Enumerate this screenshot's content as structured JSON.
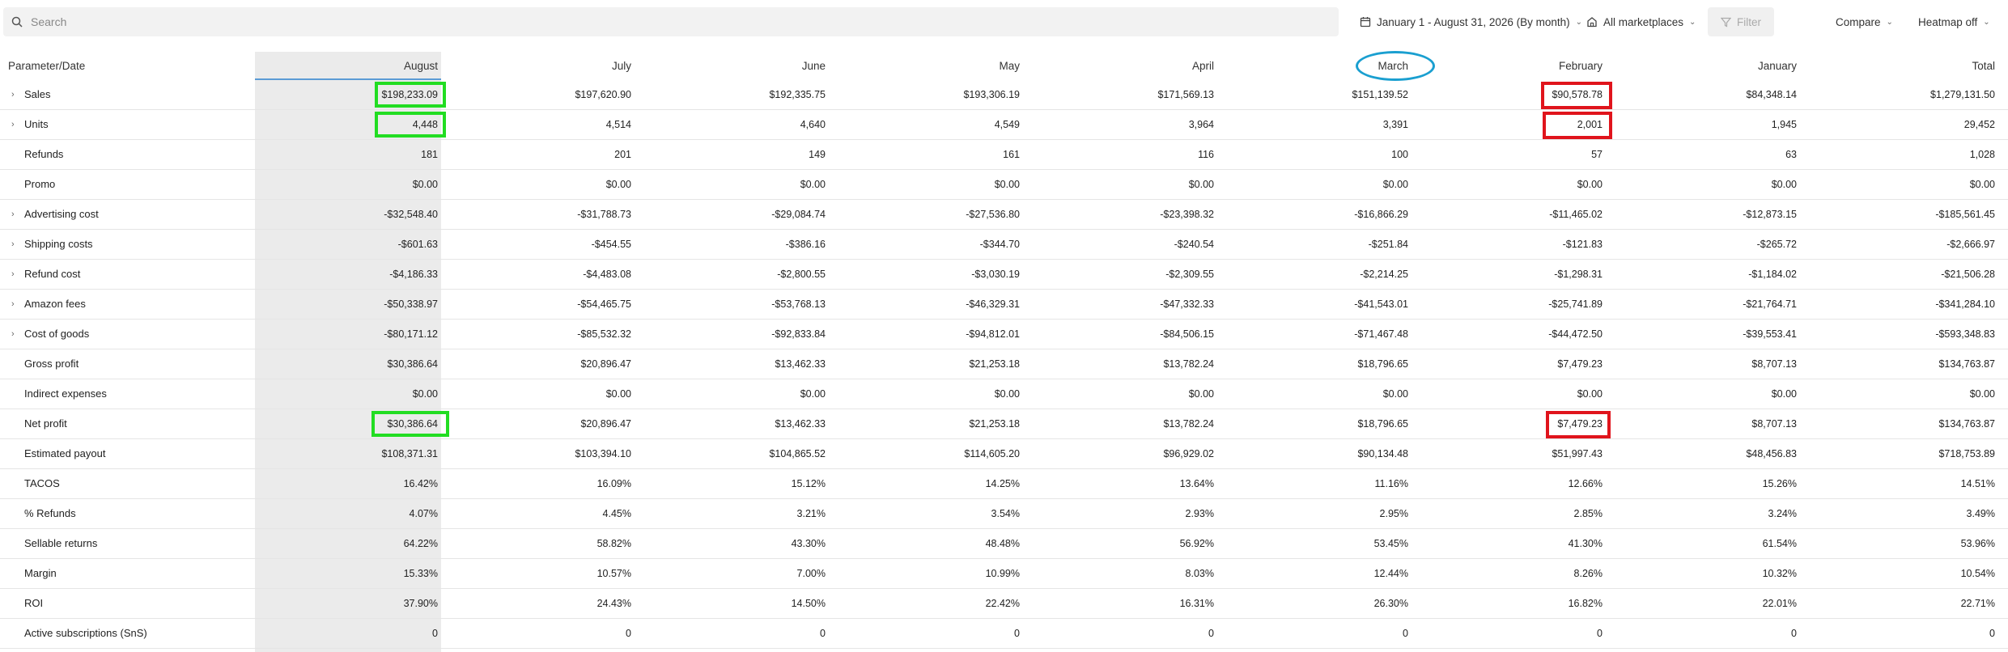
{
  "search": {
    "placeholder": "Search",
    "value": ""
  },
  "toolbar": {
    "date_range": "January 1 - August 31, 2026 (By month)",
    "marketplaces": "All marketplaces",
    "filter": "Filter",
    "compare": "Compare",
    "heatmap": "Heatmap off"
  },
  "table": {
    "param_header": "Parameter/Date",
    "columns": [
      "August",
      "July",
      "June",
      "May",
      "April",
      "March",
      "February",
      "January",
      "Total"
    ],
    "rows": [
      {
        "label": "Sales",
        "expandable": true,
        "values": [
          "$198,233.09",
          "$197,620.90",
          "$192,335.75",
          "$193,306.19",
          "$171,569.13",
          "$151,139.52",
          "$90,578.78",
          "$84,348.14",
          "$1,279,131.50"
        ]
      },
      {
        "label": "Units",
        "expandable": true,
        "values": [
          "4,448",
          "4,514",
          "4,640",
          "4,549",
          "3,964",
          "3,391",
          "2,001",
          "1,945",
          "29,452"
        ]
      },
      {
        "label": "Refunds",
        "expandable": false,
        "values": [
          "181",
          "201",
          "149",
          "161",
          "116",
          "100",
          "57",
          "63",
          "1,028"
        ]
      },
      {
        "label": "Promo",
        "expandable": false,
        "values": [
          "$0.00",
          "$0.00",
          "$0.00",
          "$0.00",
          "$0.00",
          "$0.00",
          "$0.00",
          "$0.00",
          "$0.00"
        ]
      },
      {
        "label": "Advertising cost",
        "expandable": true,
        "values": [
          "-$32,548.40",
          "-$31,788.73",
          "-$29,084.74",
          "-$27,536.80",
          "-$23,398.32",
          "-$16,866.29",
          "-$11,465.02",
          "-$12,873.15",
          "-$185,561.45"
        ]
      },
      {
        "label": "Shipping costs",
        "expandable": true,
        "values": [
          "-$601.63",
          "-$454.55",
          "-$386.16",
          "-$344.70",
          "-$240.54",
          "-$251.84",
          "-$121.83",
          "-$265.72",
          "-$2,666.97"
        ]
      },
      {
        "label": "Refund cost",
        "expandable": true,
        "values": [
          "-$4,186.33",
          "-$4,483.08",
          "-$2,800.55",
          "-$3,030.19",
          "-$2,309.55",
          "-$2,214.25",
          "-$1,298.31",
          "-$1,184.02",
          "-$21,506.28"
        ]
      },
      {
        "label": "Amazon fees",
        "expandable": true,
        "values": [
          "-$50,338.97",
          "-$54,465.75",
          "-$53,768.13",
          "-$46,329.31",
          "-$47,332.33",
          "-$41,543.01",
          "-$25,741.89",
          "-$21,764.71",
          "-$341,284.10"
        ]
      },
      {
        "label": "Cost of goods",
        "expandable": true,
        "values": [
          "-$80,171.12",
          "-$85,532.32",
          "-$92,833.84",
          "-$94,812.01",
          "-$84,506.15",
          "-$71,467.48",
          "-$44,472.50",
          "-$39,553.41",
          "-$593,348.83"
        ]
      },
      {
        "label": "Gross profit",
        "expandable": false,
        "values": [
          "$30,386.64",
          "$20,896.47",
          "$13,462.33",
          "$21,253.18",
          "$13,782.24",
          "$18,796.65",
          "$7,479.23",
          "$8,707.13",
          "$134,763.87"
        ]
      },
      {
        "label": "Indirect expenses",
        "expandable": false,
        "values": [
          "$0.00",
          "$0.00",
          "$0.00",
          "$0.00",
          "$0.00",
          "$0.00",
          "$0.00",
          "$0.00",
          "$0.00"
        ]
      },
      {
        "label": "Net profit",
        "expandable": false,
        "values": [
          "$30,386.64",
          "$20,896.47",
          "$13,462.33",
          "$21,253.18",
          "$13,782.24",
          "$18,796.65",
          "$7,479.23",
          "$8,707.13",
          "$134,763.87"
        ]
      },
      {
        "label": "Estimated payout",
        "expandable": false,
        "values": [
          "$108,371.31",
          "$103,394.10",
          "$104,865.52",
          "$114,605.20",
          "$96,929.02",
          "$90,134.48",
          "$51,997.43",
          "$48,456.83",
          "$718,753.89"
        ]
      },
      {
        "label": "TACOS",
        "expandable": false,
        "values": [
          "16.42%",
          "16.09%",
          "15.12%",
          "14.25%",
          "13.64%",
          "11.16%",
          "12.66%",
          "15.26%",
          "14.51%"
        ]
      },
      {
        "label": "% Refunds",
        "expandable": false,
        "values": [
          "4.07%",
          "4.45%",
          "3.21%",
          "3.54%",
          "2.93%",
          "2.95%",
          "2.85%",
          "3.24%",
          "3.49%"
        ]
      },
      {
        "label": "Sellable returns",
        "expandable": false,
        "values": [
          "64.22%",
          "58.82%",
          "43.30%",
          "48.48%",
          "56.92%",
          "53.45%",
          "41.30%",
          "61.54%",
          "53.96%"
        ]
      },
      {
        "label": "Margin",
        "expandable": false,
        "values": [
          "15.33%",
          "10.57%",
          "7.00%",
          "10.99%",
          "8.03%",
          "12.44%",
          "8.26%",
          "10.32%",
          "10.54%"
        ]
      },
      {
        "label": "ROI",
        "expandable": false,
        "values": [
          "37.90%",
          "24.43%",
          "14.50%",
          "22.42%",
          "16.31%",
          "26.30%",
          "16.82%",
          "22.01%",
          "22.71%"
        ]
      },
      {
        "label": "Active subscriptions (SnS)",
        "expandable": false,
        "values": [
          "0",
          "0",
          "0",
          "0",
          "0",
          "0",
          "0",
          "0",
          "0"
        ]
      }
    ]
  },
  "colors": {
    "green_highlight": "#22dd22",
    "red_highlight": "#e0141c",
    "blue_circle": "#1a9fd0",
    "selected_column": "#ebebeb"
  },
  "icons": {
    "search": "search-icon",
    "calendar": "calendar-icon",
    "store": "store-icon",
    "filter": "filter-icon",
    "chevron": "chevron-down-icon",
    "expand": "chevron-right-icon"
  }
}
